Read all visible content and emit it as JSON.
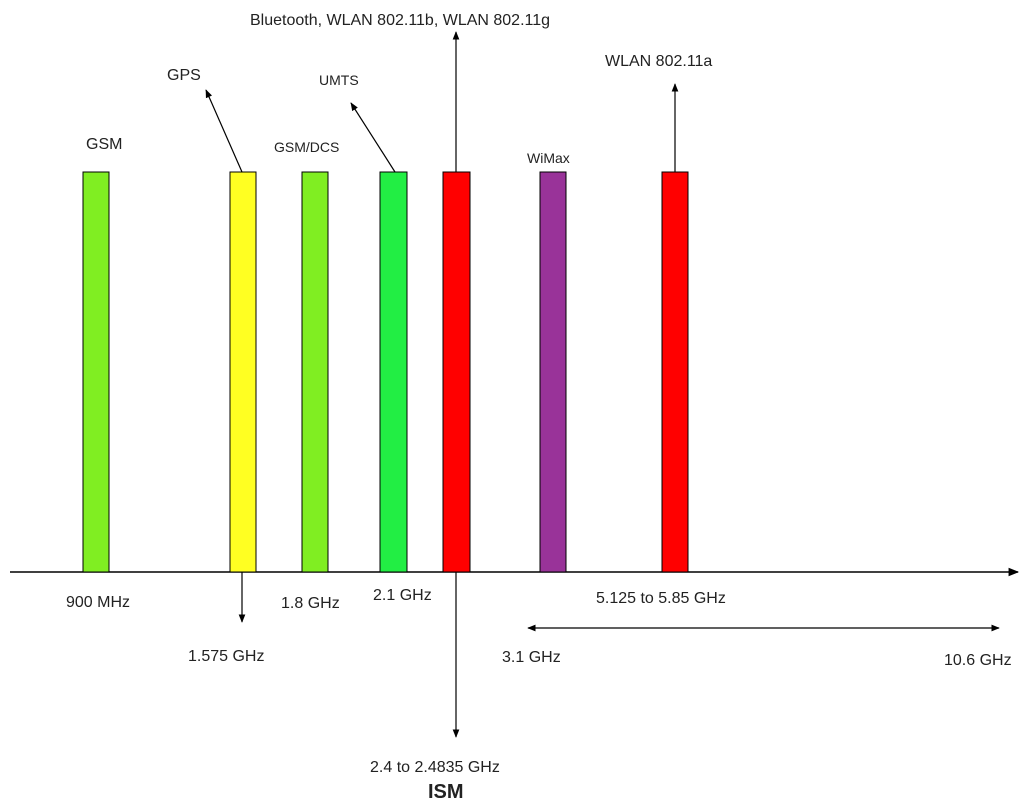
{
  "colors": {
    "gsm": "#80ee22",
    "gps": "#ffff22",
    "umts": "#22ee44",
    "ism": "#ff0000",
    "wimax": "#993399",
    "outline": "#000000",
    "background": "#ffffff"
  },
  "bands": {
    "gsm": "GSM",
    "gps": "GPS",
    "gsm_dcs": "GSM/DCS",
    "umts": "UMTS",
    "bluetooth_wlan": "Bluetooth, WLAN 802.11b, WLAN 802.11g",
    "wimax": "WiMax",
    "wlan_a": "WLAN 802.11a"
  },
  "frequencies": {
    "f_900": "900 MHz",
    "f_1575": "1.575 GHz",
    "f_1800": "1.8 GHz",
    "f_2100": "2.1 GHz",
    "f_ism": "2.4 to 2.4835 GHz",
    "f_wlan_a": "5.125 to 5.85 GHz",
    "f_3100": "3.1 GHz",
    "f_10600": "10.6 GHz"
  },
  "ism_label": "ISM"
}
